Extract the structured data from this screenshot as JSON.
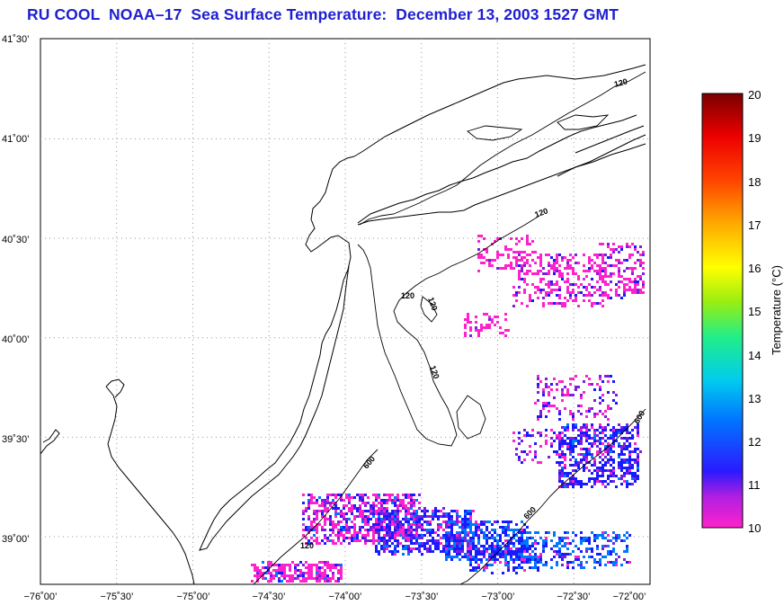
{
  "title": "RU COOL  NOAA–17  Sea Surface Temperature:  December 13, 2003 1527 GMT",
  "map": {
    "lon_range": [
      -76.0,
      -72.0
    ],
    "lat_range": [
      38.8,
      41.5
    ],
    "grid": true,
    "lat_ticks": [
      {
        "value": 41.5,
        "label": "41˚30’"
      },
      {
        "value": 41.0,
        "label": "41˚00’"
      },
      {
        "value": 40.5,
        "label": "40˚30’"
      },
      {
        "value": 40.0,
        "label": "40˚00’"
      },
      {
        "value": 39.5,
        "label": "39˚30’"
      },
      {
        "value": 39.0,
        "label": "39˚00’"
      }
    ],
    "lon_ticks": [
      {
        "value": -76.0,
        "label": "−76˚00’"
      },
      {
        "value": -75.5,
        "label": "−75˚30’"
      },
      {
        "value": -75.0,
        "label": "−75˚00’"
      },
      {
        "value": -74.5,
        "label": "−74˚30’"
      },
      {
        "value": -74.0,
        "label": "−74˚00’"
      },
      {
        "value": -73.5,
        "label": "−73˚30’"
      },
      {
        "value": -73.0,
        "label": "−73˚00’"
      },
      {
        "value": -72.5,
        "label": "−72˚30’"
      },
      {
        "value": -72.0,
        "label": "−72˚00’"
      }
    ],
    "contour_labels": [
      "120",
      "120",
      "120",
      "120",
      "120",
      "120",
      "600",
      "600",
      "600"
    ]
  },
  "colorbar": {
    "title": "Temperature (°C)",
    "min": 10,
    "max": 20,
    "ticks": [
      "20",
      "19",
      "18",
      "17",
      "16",
      "15",
      "14",
      "13",
      "12",
      "11",
      "10"
    ],
    "colors": [
      "#ff22cc",
      "#7a1fe0",
      "#1a1aff",
      "#0077ff",
      "#00ccee",
      "#22ee88",
      "#99ee11",
      "#ffff00",
      "#ffaa00",
      "#ff4400",
      "#ee0000",
      "#7a0000"
    ]
  }
}
